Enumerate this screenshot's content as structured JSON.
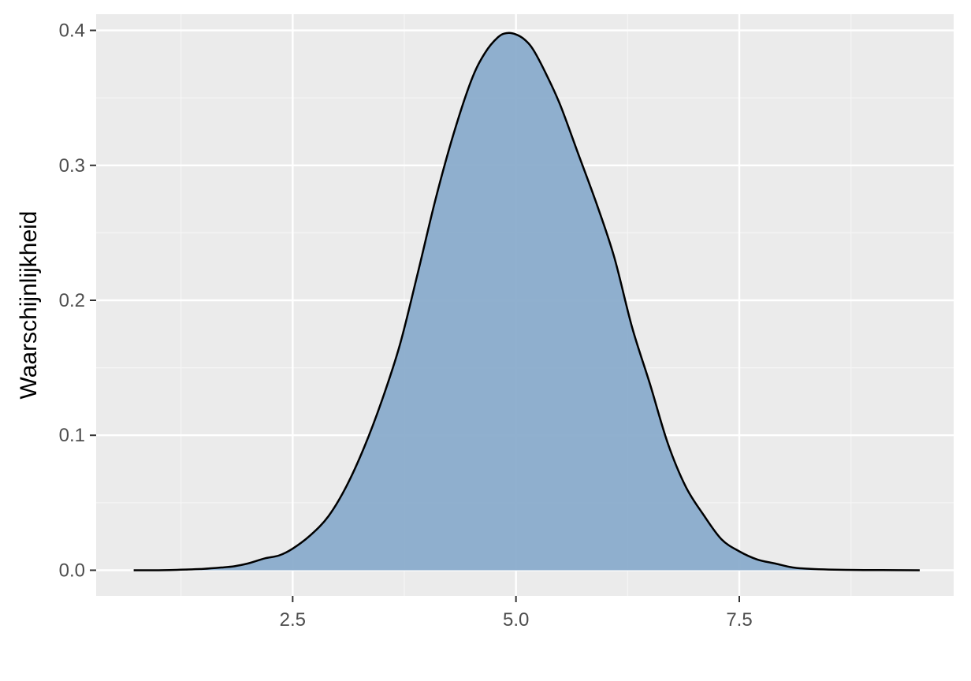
{
  "chart_data": {
    "type": "area",
    "title": "",
    "xlabel": "",
    "ylabel": "Waarschijnlijkheid",
    "xlim": [
      0.3,
      9.9
    ],
    "ylim": [
      -0.019,
      0.412
    ],
    "x_ticks": [
      2.5,
      5.0,
      7.5
    ],
    "x_tick_labels": [
      "2.5",
      "5.0",
      "7.5"
    ],
    "x_minor_ticks": [
      1.25,
      3.75,
      6.25,
      8.75
    ],
    "y_ticks": [
      0.0,
      0.1,
      0.2,
      0.3,
      0.4
    ],
    "y_tick_labels": [
      "0.0",
      "0.1",
      "0.2",
      "0.3",
      "0.4"
    ],
    "y_minor_ticks": [
      0.05,
      0.15,
      0.25,
      0.35
    ],
    "grid": true,
    "legend": "none",
    "colors": {
      "panel_background": "#ebebeb",
      "grid_major": "#ffffff",
      "grid_minor": "#f5f5f5",
      "fill": "#8aaccc",
      "line": "#000000"
    },
    "series": [
      {
        "x": [
          0.72,
          1.0,
          1.3,
          1.5,
          1.7,
          1.85,
          2.0,
          2.1,
          2.2,
          2.35,
          2.5,
          2.7,
          2.9,
          3.1,
          3.3,
          3.5,
          3.7,
          3.9,
          4.1,
          4.3,
          4.5,
          4.65,
          4.8,
          4.9,
          5.0,
          5.1,
          5.2,
          5.35,
          5.5,
          5.7,
          5.9,
          6.1,
          6.3,
          6.5,
          6.7,
          6.9,
          7.1,
          7.3,
          7.5,
          7.7,
          7.9,
          8.1,
          8.3,
          8.5,
          8.8,
          9.1,
          9.52
        ],
        "y": [
          0.0,
          0.0,
          0.0005,
          0.001,
          0.002,
          0.003,
          0.005,
          0.007,
          0.009,
          0.011,
          0.016,
          0.026,
          0.04,
          0.062,
          0.091,
          0.126,
          0.167,
          0.22,
          0.275,
          0.323,
          0.363,
          0.383,
          0.395,
          0.398,
          0.397,
          0.393,
          0.385,
          0.366,
          0.344,
          0.308,
          0.272,
          0.232,
          0.18,
          0.138,
          0.094,
          0.062,
          0.041,
          0.023,
          0.014,
          0.008,
          0.005,
          0.002,
          0.001,
          0.0005,
          0.0002,
          0.0001,
          0.0
        ]
      }
    ]
  }
}
